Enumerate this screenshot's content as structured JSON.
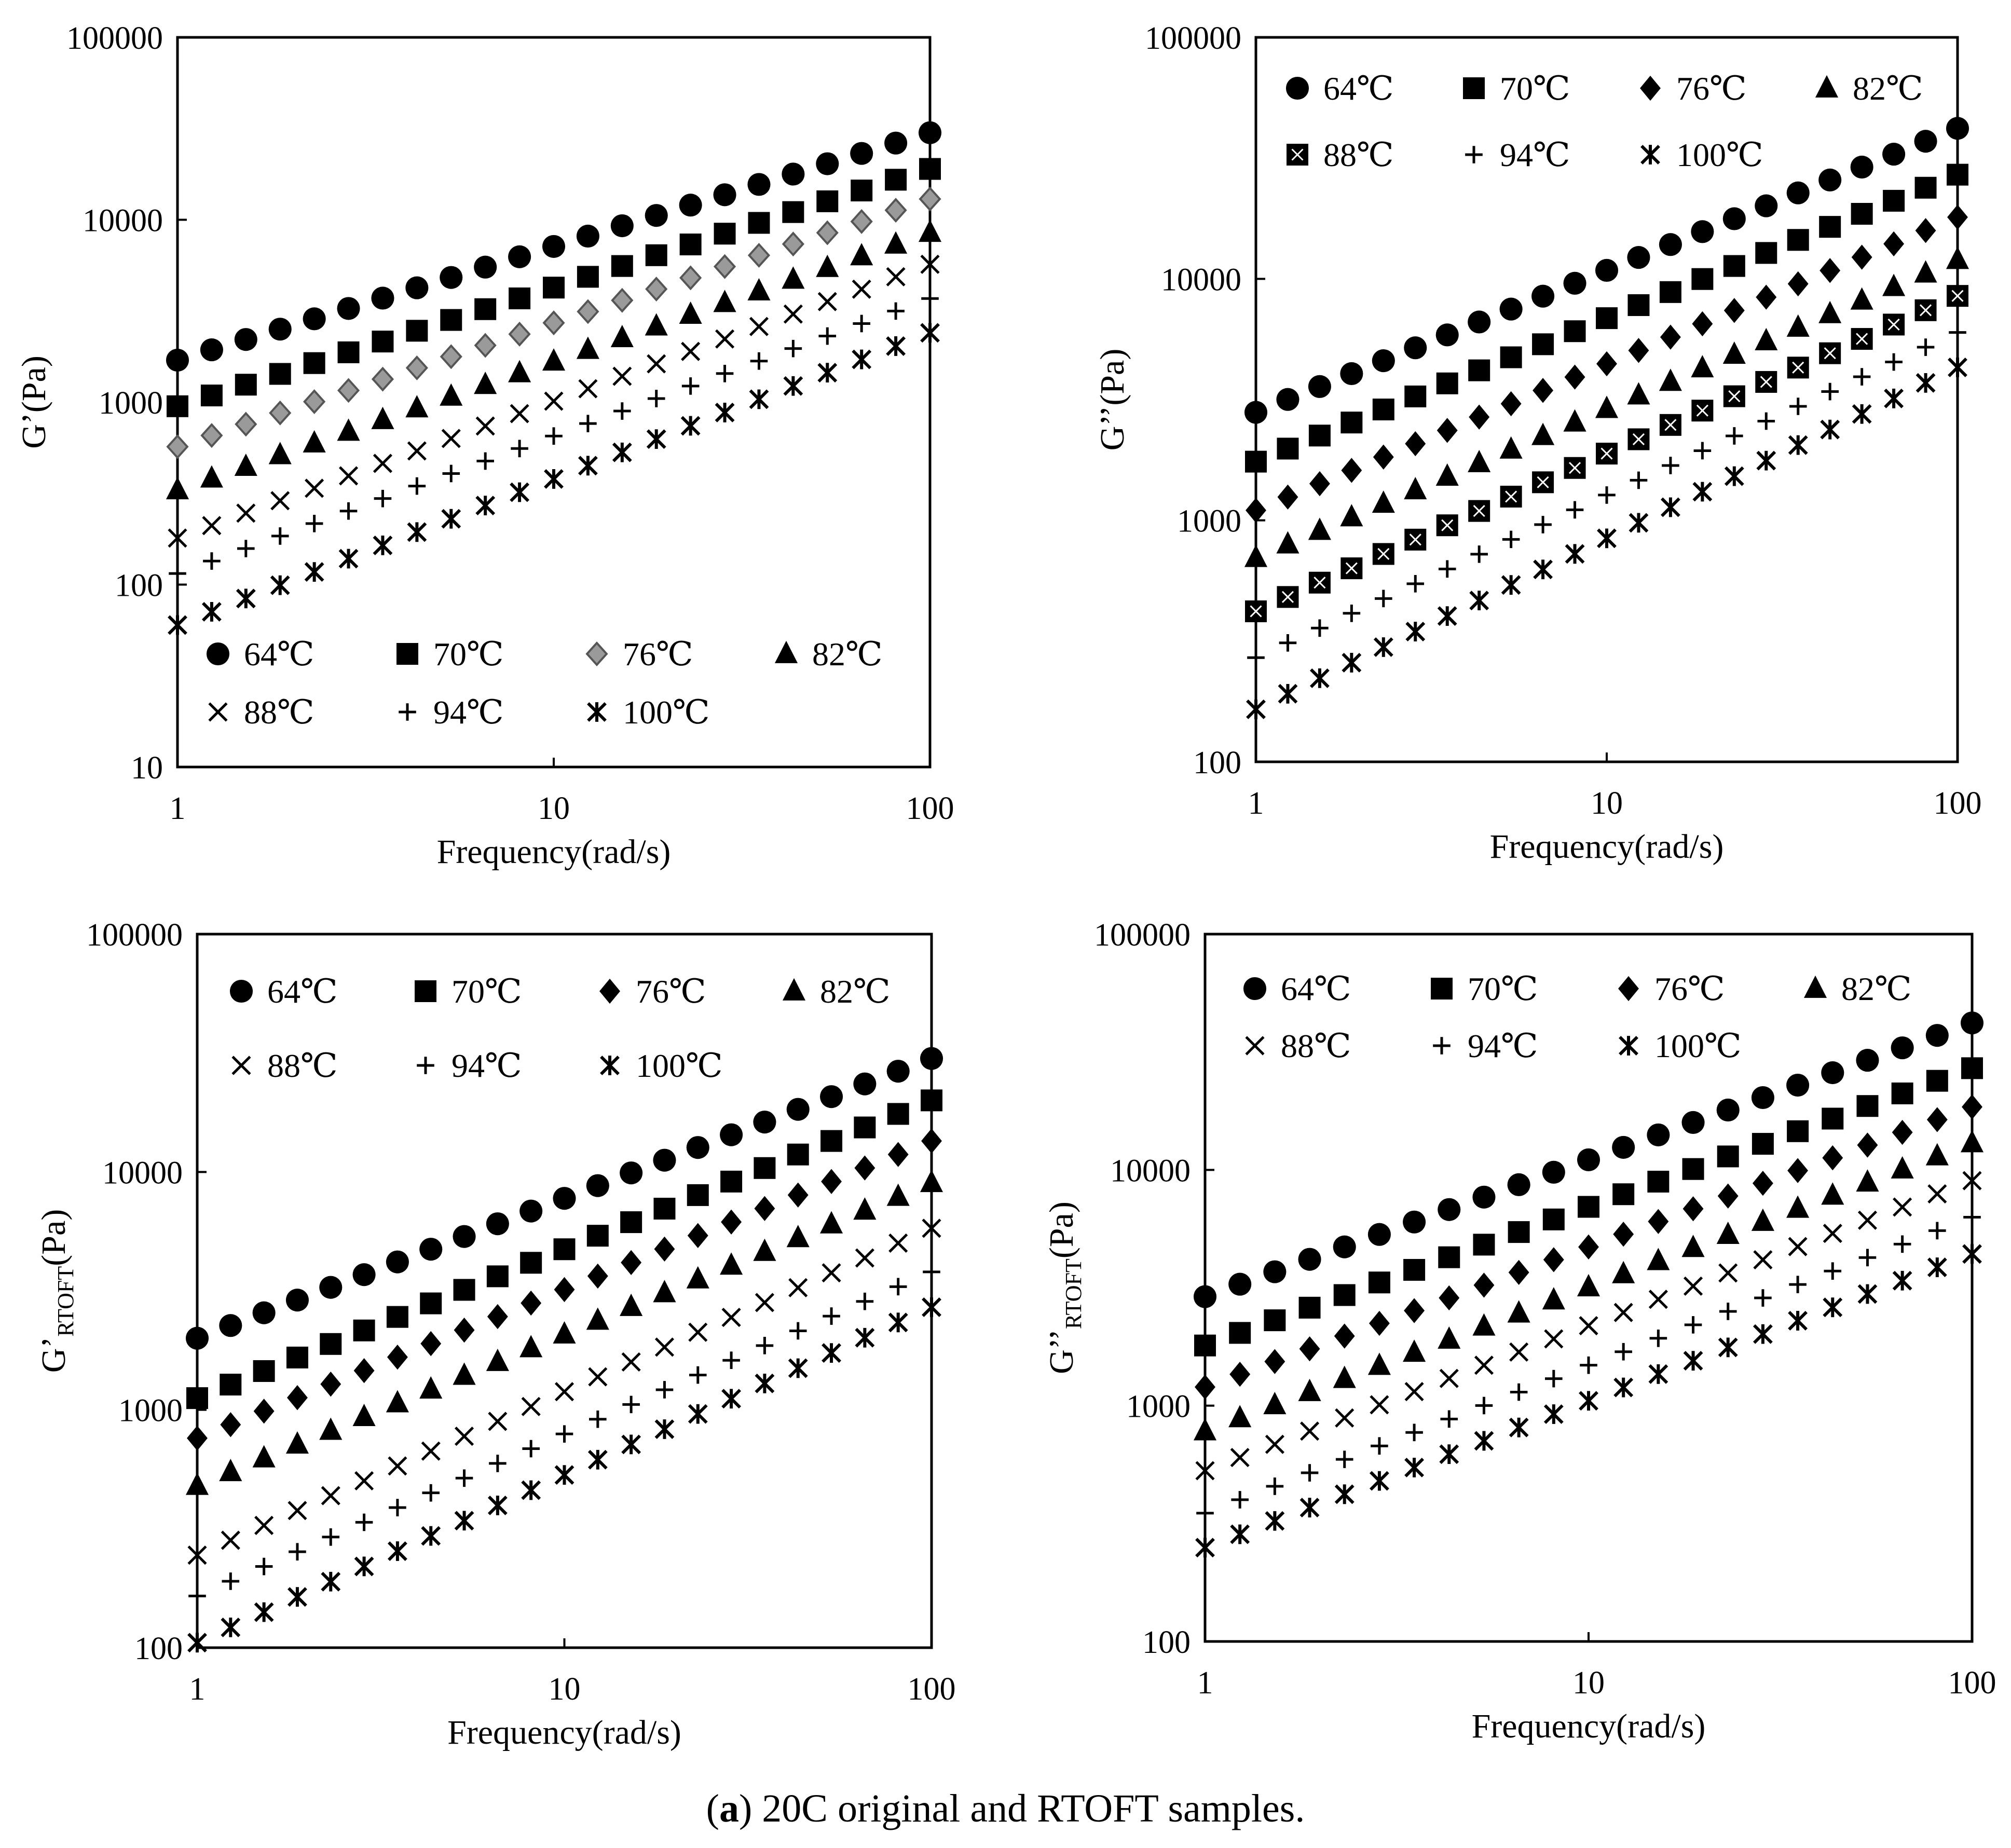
{
  "figure": {
    "caption_label": "a",
    "caption_text": ") 20C original and RTOFT samples.",
    "caption_open": "("
  },
  "chart_data": [
    {
      "type": "scatter",
      "id": "p1",
      "xscale": "log",
      "yscale": "log",
      "xlim": [
        1,
        100
      ],
      "ylim": [
        10,
        100000
      ],
      "xlabel": "Frequency(rad/s)",
      "ylabel": "G’(Pa)",
      "ylabel_main": "G’(Pa)",
      "ylabel_sub": "",
      "xticks": [
        "1",
        "10",
        "100"
      ],
      "yticks": [
        "10",
        "100",
        "1000",
        "10000",
        "100000"
      ],
      "legend_position": "bottom-left",
      "series": [
        {
          "name": "64℃",
          "marker": "circle",
          "start": 1700,
          "end": 30000
        },
        {
          "name": "70℃",
          "marker": "square",
          "start": 950,
          "end": 19000
        },
        {
          "name": "76℃",
          "marker": "diamond-gray",
          "start": 570,
          "end": 13000
        },
        {
          "name": "82℃",
          "marker": "triangle",
          "start": 330,
          "end": 8500
        },
        {
          "name": "88℃",
          "marker": "x",
          "start": 180,
          "end": 5700
        },
        {
          "name": "94℃",
          "marker": "plus",
          "start": 115,
          "end": 3700
        },
        {
          "name": "100℃",
          "marker": "star",
          "start": 60,
          "end": 2400
        }
      ]
    },
    {
      "type": "scatter",
      "id": "p2",
      "xscale": "log",
      "yscale": "log",
      "xlim": [
        1,
        100
      ],
      "ylim": [
        100,
        100000
      ],
      "xlabel": "Frequency(rad/s)",
      "ylabel": "G’’(Pa)",
      "ylabel_main": "G’’(Pa)",
      "ylabel_sub": "",
      "xticks": [
        "1",
        "10",
        "100"
      ],
      "yticks": [
        "100",
        "1000",
        "10000",
        "100000"
      ],
      "legend_position": "top-left",
      "series": [
        {
          "name": "64℃",
          "marker": "circle",
          "start": 2800,
          "end": 42000
        },
        {
          "name": "70℃",
          "marker": "square",
          "start": 1750,
          "end": 27000
        },
        {
          "name": "76℃",
          "marker": "diamond",
          "start": 1100,
          "end": 18000
        },
        {
          "name": "82℃",
          "marker": "triangle",
          "start": 700,
          "end": 12000
        },
        {
          "name": "88℃",
          "marker": "square-x",
          "start": 420,
          "end": 8500
        },
        {
          "name": "94℃",
          "marker": "plus",
          "start": 270,
          "end": 6000
        },
        {
          "name": "100℃",
          "marker": "star",
          "start": 165,
          "end": 4300
        }
      ]
    },
    {
      "type": "scatter",
      "id": "p3",
      "xscale": "log",
      "yscale": "log",
      "xlim": [
        1,
        100
      ],
      "ylim": [
        100,
        100000
      ],
      "xlabel": "Frequency(rad/s)",
      "ylabel": "G’RTOFT(Pa)",
      "ylabel_main": "G’",
      "ylabel_sub": "RTOFT",
      "ylabel_tail": "(Pa)",
      "xticks": [
        "1",
        "10",
        "100"
      ],
      "yticks": [
        "100",
        "1000",
        "10000",
        "100000"
      ],
      "legend_position": "top-left",
      "series": [
        {
          "name": "64℃",
          "marker": "circle",
          "start": 2000,
          "end": 30000
        },
        {
          "name": "70℃",
          "marker": "square",
          "start": 1120,
          "end": 20000
        },
        {
          "name": "76℃",
          "marker": "diamond",
          "start": 760,
          "end": 13500
        },
        {
          "name": "82℃",
          "marker": "triangle",
          "start": 480,
          "end": 9000
        },
        {
          "name": "88℃",
          "marker": "x",
          "start": 245,
          "end": 5800
        },
        {
          "name": "94℃",
          "marker": "plus",
          "start": 165,
          "end": 3800
        },
        {
          "name": "100℃",
          "marker": "star",
          "start": 105,
          "end": 2700
        }
      ]
    },
    {
      "type": "scatter",
      "id": "p4",
      "xscale": "log",
      "yscale": "log",
      "xlim": [
        1,
        100
      ],
      "ylim": [
        100,
        100000
      ],
      "xlabel": "Frequency(rad/s)",
      "ylabel": "G’’RTOFT(Pa)",
      "ylabel_main": "G’’",
      "ylabel_sub": "RTOFT",
      "ylabel_tail": "(Pa)",
      "xticks": [
        "1",
        "10",
        "100"
      ],
      "yticks": [
        "100",
        "1000",
        "10000",
        "100000"
      ],
      "legend_position": "top-left",
      "series": [
        {
          "name": "64℃",
          "marker": "circle",
          "start": 2900,
          "end": 42000
        },
        {
          "name": "70℃",
          "marker": "square",
          "start": 1800,
          "end": 27000
        },
        {
          "name": "76℃",
          "marker": "diamond",
          "start": 1200,
          "end": 18500
        },
        {
          "name": "82℃",
          "marker": "triangle",
          "start": 780,
          "end": 13000
        },
        {
          "name": "88℃",
          "marker": "x",
          "start": 530,
          "end": 9000
        },
        {
          "name": "94℃",
          "marker": "plus",
          "start": 350,
          "end": 6300
        },
        {
          "name": "100℃",
          "marker": "star",
          "start": 250,
          "end": 4400
        }
      ]
    }
  ]
}
